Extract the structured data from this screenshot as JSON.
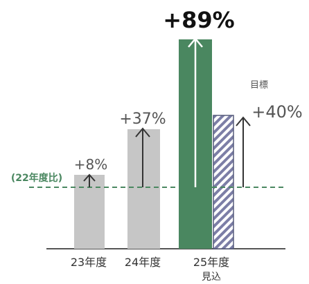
{
  "chart_data": {
    "type": "bar",
    "baseline_label": "(22年度比)",
    "categories": [
      {
        "label": "23年度",
        "sublabel": ""
      },
      {
        "label": "24年度",
        "sublabel": ""
      },
      {
        "label": "25年度",
        "sublabel": "見込"
      }
    ],
    "series": [
      {
        "name": "",
        "values": [
          8,
          37,
          89
        ],
        "labels": [
          "+8%",
          "+37%",
          "+89%"
        ]
      }
    ],
    "target": {
      "label": "目標",
      "value": 40,
      "text": "+40%"
    },
    "colors": {
      "past_bar": "#c6c6c6",
      "forecast_bar": "#4a8760",
      "target_stripe": "#7c7ea6",
      "baseline": "#4a8760",
      "arrow": "#333333",
      "text": "#555555"
    }
  }
}
